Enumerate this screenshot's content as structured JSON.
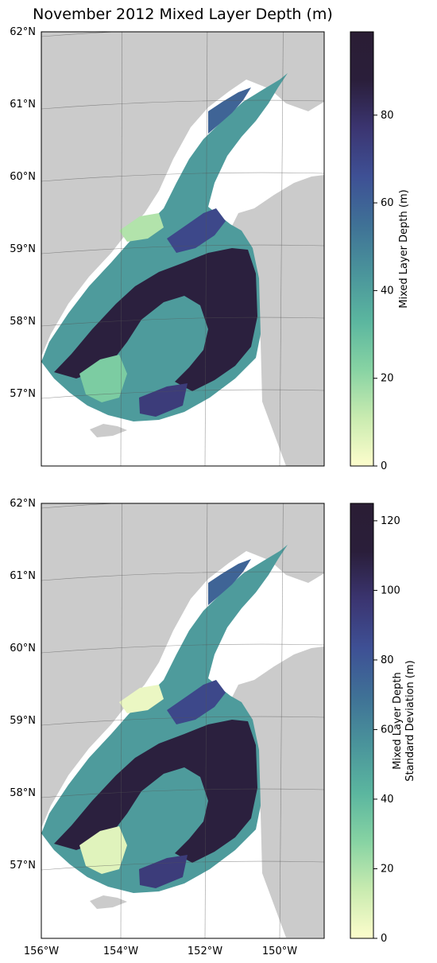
{
  "chart_data": [
    {
      "type": "heatmap",
      "title": "November 2012 Mixed Layer Depth (m)",
      "y_ticks": [
        "62°N",
        "61°N",
        "60°N",
        "59°N",
        "58°N",
        "57°N"
      ],
      "x_ticks": [],
      "colorbar": {
        "label_lines": [
          "Mixed Layer Depth (m)"
        ],
        "ticks": [
          "0",
          "20",
          "40",
          "60",
          "80"
        ],
        "tick_values": [
          0,
          20,
          40,
          60,
          80
        ],
        "range": [
          0,
          99
        ]
      },
      "land_color": "#cbcbcb",
      "colormap": [
        "#fdfdcc",
        "#c9ebb0",
        "#87d3a3",
        "#5bb69f",
        "#4a949b",
        "#3f7196",
        "#3e5095",
        "#3b3571",
        "#2a1e3a",
        "#2a1d34"
      ]
    },
    {
      "type": "heatmap",
      "title": "",
      "y_ticks": [
        "62°N",
        "61°N",
        "60°N",
        "59°N",
        "58°N",
        "57°N"
      ],
      "x_ticks": [
        "156°W",
        "154°W",
        "152°W",
        "150°W"
      ],
      "colorbar": {
        "label_lines": [
          "Mixed Layer Depth",
          "Standard Deviation (m)"
        ],
        "ticks": [
          "0",
          "20",
          "40",
          "60",
          "80",
          "100",
          "120"
        ],
        "tick_values": [
          0,
          20,
          40,
          60,
          80,
          100,
          120
        ],
        "range": [
          0,
          125
        ]
      },
      "land_color": "#cbcbcb",
      "colormap": [
        "#fdfdcc",
        "#c9ebb0",
        "#87d3a3",
        "#5bb69f",
        "#4a949b",
        "#3f7196",
        "#3e5095",
        "#3b3571",
        "#2a1e3a",
        "#2a1d34"
      ]
    }
  ]
}
